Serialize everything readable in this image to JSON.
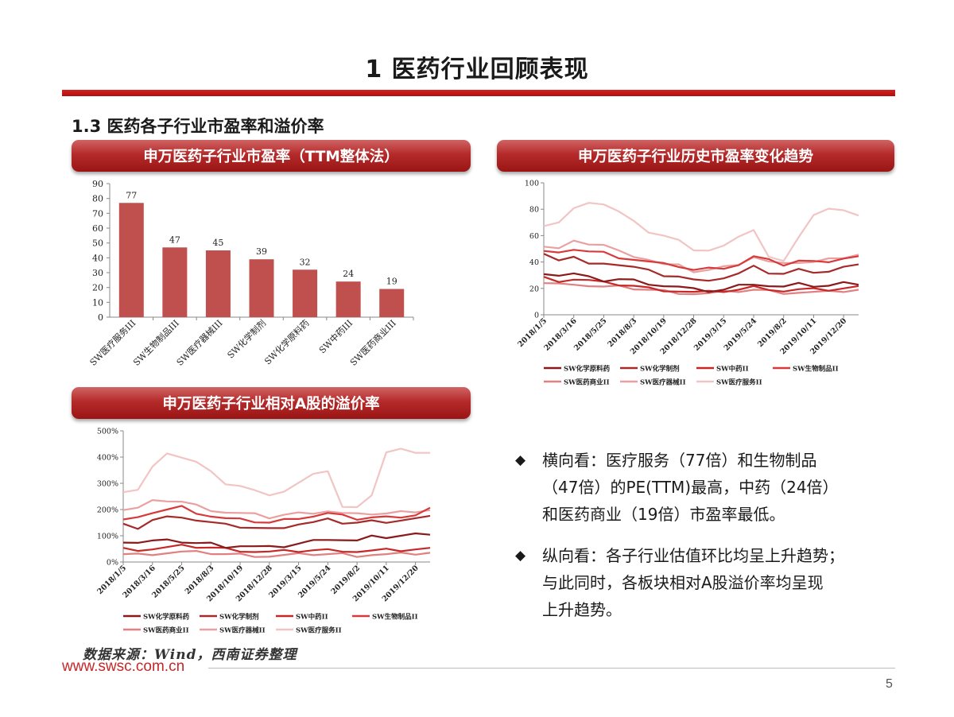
{
  "page": {
    "title": "1 医药行业回顾表现",
    "section_title": "1.3 医药各子行业市盈率和溢价率",
    "source_note": "数据来源：Wind，西南证券整理",
    "site": "www.swsc.com.cn",
    "page_number": "5"
  },
  "banners": {
    "pe_bar": "申万医药子行业市盈率（TTM整体法）",
    "pe_history": "申万医药子行业历史市盈率变化趋势",
    "premium": "申万医药子行业相对A股的溢价率"
  },
  "bullets": [
    {
      "mark": "◆",
      "lines": [
        "横向看：医疗服务（77倍）和生物制品",
        "（47倍）的PE(TTM)最高，中药（24倍）",
        "和医药商业（19倍）市盈率最低。"
      ]
    },
    {
      "mark": "◆",
      "lines": [
        "纵向看：各子行业估值环比均呈上升趋势；",
        "与此同时，各板块相对A股溢价率均呈现",
        "上升趋势。"
      ]
    }
  ],
  "chart_data": [
    {
      "id": "pe_bar",
      "type": "bar",
      "categories": [
        "SW医疗服务III",
        "SW生物制品III",
        "SW医疗器械III",
        "SW化学制剂",
        "SW化学原料药",
        "SW中药III",
        "SW医药商业III"
      ],
      "values": [
        77,
        47,
        45,
        39,
        32,
        24,
        19
      ],
      "ylim": [
        0,
        90
      ],
      "yticks": [
        0,
        10,
        20,
        30,
        40,
        50,
        60,
        70,
        80,
        90
      ],
      "color": "#c0504d"
    },
    {
      "id": "pe_history",
      "type": "line",
      "x_ticks": [
        "2018/1/5",
        "2018/3/16",
        "2018/5/25",
        "2018/8/3",
        "2018/10/19",
        "2018/12/28",
        "2019/3/15",
        "2019/5/24",
        "2019/8/2",
        "2019/10/11",
        "2019/12/20"
      ],
      "ylim": [
        0,
        100
      ],
      "yticks": [
        0,
        20,
        40,
        60,
        80,
        100
      ],
      "legend_position": "bottom",
      "series": [
        {
          "name": "SW化学原料药",
          "color": "#8b1a1a",
          "values": [
            32,
            30,
            31,
            28,
            26,
            27,
            26,
            24,
            22,
            21,
            19,
            18,
            19,
            22,
            24,
            22,
            21,
            23,
            22,
            22,
            24,
            24
          ]
        },
        {
          "name": "SW化学制剂",
          "color": "#a52a2a",
          "values": [
            45,
            42,
            44,
            38,
            40,
            38,
            36,
            33,
            30,
            29,
            26,
            27,
            28,
            31,
            36,
            32,
            31,
            34,
            33,
            33,
            36,
            37
          ]
        },
        {
          "name": "SW中药II",
          "color": "#c62828",
          "values": [
            28,
            26,
            27,
            26,
            24,
            23,
            22,
            20,
            19,
            18,
            17,
            17,
            18,
            19,
            21,
            20,
            18,
            19,
            19,
            19,
            20,
            21
          ]
        },
        {
          "name": "SW生物制品II",
          "color": "#d63a3a",
          "values": [
            48,
            46,
            50,
            48,
            47,
            44,
            42,
            40,
            38,
            37,
            34,
            35,
            36,
            38,
            44,
            41,
            38,
            41,
            40,
            41,
            43,
            44
          ]
        },
        {
          "name": "SW医药商业II",
          "color": "#e08080",
          "values": [
            24,
            23,
            24,
            22,
            21,
            21,
            20,
            19,
            18,
            17,
            16,
            16,
            17,
            18,
            19,
            18,
            17,
            17,
            17,
            17,
            18,
            19
          ]
        },
        {
          "name": "SW医疗器械II",
          "color": "#eaa0a0",
          "values": [
            52,
            50,
            55,
            54,
            53,
            48,
            45,
            42,
            38,
            37,
            33,
            34,
            36,
            39,
            44,
            40,
            38,
            40,
            40,
            42,
            44,
            46
          ]
        },
        {
          "name": "SW医疗服务II",
          "color": "#f2c4c4",
          "values": [
            68,
            70,
            80,
            86,
            84,
            78,
            70,
            63,
            60,
            56,
            50,
            49,
            52,
            58,
            65,
            44,
            40,
            60,
            76,
            80,
            78,
            76
          ]
        }
      ]
    },
    {
      "id": "premium",
      "type": "line",
      "x_ticks": [
        "2018/1/5",
        "2018/3/16",
        "2018/5/25",
        "2018/8/3",
        "2018/10/19",
        "2018/12/28",
        "2019/3/15",
        "2019/5/24",
        "2019/8/2",
        "2019/10/11",
        "2019/12/20"
      ],
      "ylim": [
        0,
        500
      ],
      "yticks": [
        "0%",
        "100%",
        "200%",
        "300%",
        "400%",
        "500%"
      ],
      "legend_position": "bottom",
      "series": [
        {
          "name": "SW化学原料药",
          "color": "#8b1a1a",
          "values": [
            80,
            75,
            80,
            80,
            78,
            72,
            70,
            60,
            62,
            58,
            55,
            60,
            70,
            80,
            90,
            85,
            80,
            95,
            95,
            100,
            105,
            110
          ]
        },
        {
          "name": "SW化学制剂",
          "color": "#a52a2a",
          "values": [
            140,
            130,
            160,
            170,
            175,
            160,
            150,
            140,
            135,
            130,
            125,
            135,
            145,
            150,
            160,
            150,
            150,
            155,
            155,
            160,
            165,
            170
          ]
        },
        {
          "name": "SW中药II",
          "color": "#c62828",
          "values": [
            50,
            48,
            50,
            55,
            60,
            58,
            55,
            50,
            45,
            40,
            38,
            40,
            42,
            45,
            45,
            45,
            40,
            42,
            45,
            45,
            48,
            50
          ]
        },
        {
          "name": "SW生物制品II",
          "color": "#d63a3a",
          "values": [
            160,
            165,
            190,
            200,
            210,
            190,
            175,
            165,
            160,
            155,
            150,
            160,
            170,
            175,
            185,
            175,
            165,
            170,
            170,
            175,
            180,
            205
          ]
        },
        {
          "name": "SW医药商业II",
          "color": "#e08080",
          "values": [
            30,
            28,
            32,
            35,
            38,
            36,
            34,
            30,
            28,
            25,
            22,
            25,
            28,
            30,
            30,
            30,
            25,
            28,
            28,
            30,
            32,
            35
          ]
        },
        {
          "name": "SW医疗器械II",
          "color": "#eaa0a0",
          "values": [
            200,
            205,
            230,
            235,
            230,
            215,
            200,
            190,
            185,
            180,
            170,
            180,
            185,
            190,
            195,
            185,
            180,
            185,
            185,
            190,
            195,
            200
          ]
        },
        {
          "name": "SW医疗服务II",
          "color": "#f2c4c4",
          "values": [
            270,
            275,
            360,
            420,
            400,
            380,
            340,
            300,
            290,
            270,
            260,
            270,
            300,
            330,
            350,
            210,
            205,
            260,
            420,
            430,
            410,
            420
          ]
        }
      ]
    }
  ]
}
